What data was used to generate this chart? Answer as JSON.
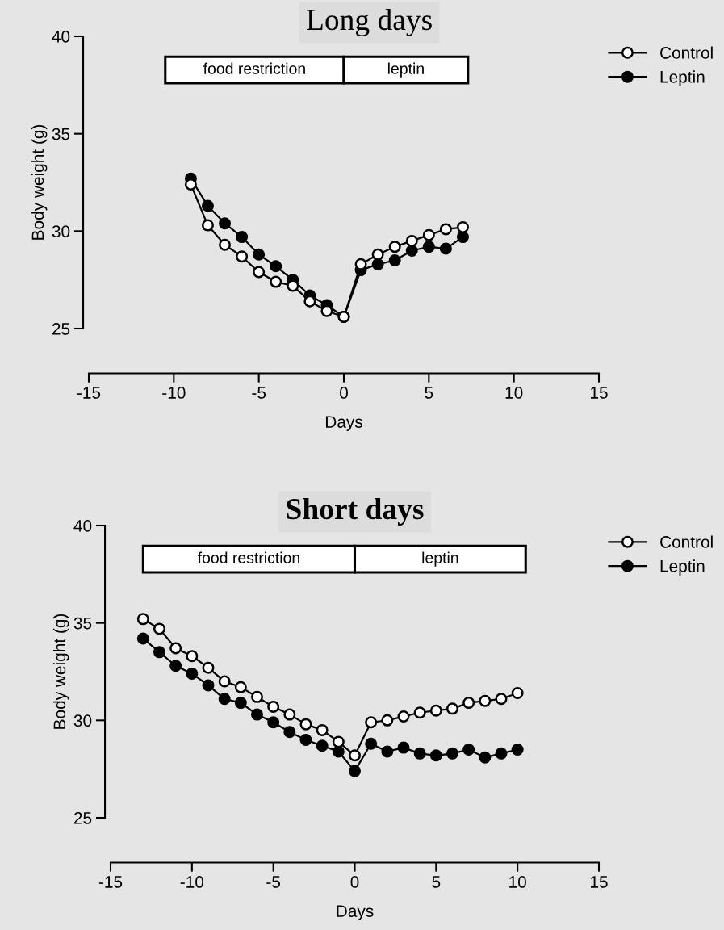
{
  "chart_data": [
    {
      "type": "line",
      "title": "Long days",
      "xlabel": "Days",
      "ylabel": "Body weight (g)",
      "x": [
        -9,
        -8,
        -7,
        -6,
        -5,
        -4,
        -3,
        -2,
        -1,
        0,
        1,
        2,
        3,
        4,
        5,
        6,
        7
      ],
      "series": [
        {
          "name": "Control",
          "color": "#000000",
          "values": [
            32.4,
            30.3,
            29.3,
            28.7,
            27.9,
            27.4,
            27.2,
            26.4,
            25.9,
            25.6,
            28.3,
            28.8,
            29.2,
            29.5,
            29.8,
            30.1,
            30.2
          ]
        },
        {
          "name": "Leptin",
          "color": "#000000",
          "values": [
            32.7,
            31.3,
            30.4,
            29.7,
            28.8,
            28.2,
            27.5,
            26.7,
            26.2,
            25.6,
            28.0,
            28.3,
            28.5,
            29.0,
            29.2,
            29.1,
            29.7
          ]
        }
      ],
      "bands": [
        {
          "axis": "x",
          "from": -10.5,
          "to": 0,
          "label": "food restriction"
        },
        {
          "axis": "x",
          "from": 0,
          "to": 7.3,
          "label": "leptin"
        }
      ],
      "xlim": [
        -15,
        15
      ],
      "xticks": [
        -15,
        -10,
        -5,
        0,
        5,
        10,
        15
      ],
      "ylim": [
        25,
        40
      ],
      "yticks": [
        25,
        30,
        35,
        40
      ],
      "marker": "circle",
      "line_style": "solid",
      "grid": false,
      "legend": "top right"
    },
    {
      "type": "line",
      "title": "Short days",
      "xlabel": "Days",
      "ylabel": "Body weight (g)",
      "x": [
        -13,
        -12,
        -11,
        -10,
        -9,
        -8,
        -7,
        -6,
        -5,
        -4,
        -3,
        -2,
        -1,
        0,
        1,
        2,
        3,
        4,
        5,
        6,
        7,
        8,
        9,
        10
      ],
      "series": [
        {
          "name": "Control",
          "color": "#000000",
          "values": [
            35.2,
            34.7,
            33.7,
            33.3,
            32.7,
            32.0,
            31.7,
            31.2,
            30.7,
            30.3,
            29.8,
            29.5,
            28.9,
            28.2,
            29.9,
            30.0,
            30.2,
            30.4,
            30.5,
            30.6,
            30.9,
            31.0,
            31.1,
            31.4
          ]
        },
        {
          "name": "Leptin",
          "color": "#000000",
          "values": [
            34.2,
            33.5,
            32.8,
            32.4,
            31.8,
            31.1,
            30.9,
            30.3,
            29.9,
            29.4,
            29.0,
            28.7,
            28.4,
            27.4,
            28.8,
            28.4,
            28.6,
            28.3,
            28.2,
            28.3,
            28.5,
            28.1,
            28.3,
            28.5
          ]
        }
      ],
      "bands": [
        {
          "axis": "x",
          "from": -13,
          "to": 0,
          "label": "food restriction"
        },
        {
          "axis": "x",
          "from": 0,
          "to": 10.5,
          "label": "leptin"
        }
      ],
      "xlim": [
        -15,
        15
      ],
      "xticks": [
        -15,
        -10,
        -5,
        0,
        5,
        10,
        15
      ],
      "ylim": [
        25,
        40
      ],
      "yticks": [
        25,
        30,
        35,
        40
      ],
      "marker": "circle",
      "line_style": "solid",
      "grid": false,
      "legend": "top right"
    }
  ]
}
